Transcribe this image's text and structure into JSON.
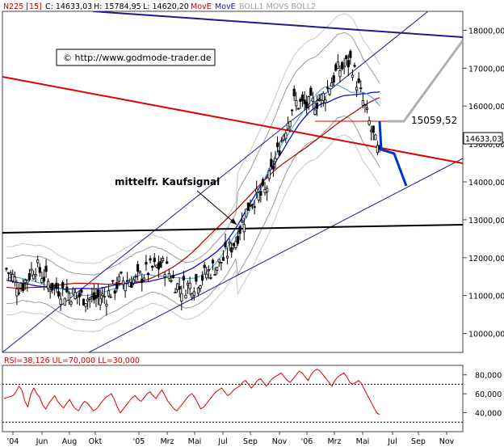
{
  "header": {
    "symbol": "N225 [15]",
    "close": "C: 14633,03",
    "high": "H: 15784,95",
    "low": "L: 14620,20",
    "ind1": "MovE",
    "ind2": "MovE",
    "ind3": "BOLL1 MOVS BOLL2"
  },
  "watermark": "© http://www.godmode-trader.de",
  "annotation": "mittelfr. Kaufsignal",
  "price_label": "15059,52",
  "last_price": "14633,03",
  "colors": {
    "bull": "#000000",
    "bear": "#000000",
    "red": "#e00000",
    "blue": "#0000cc",
    "navy": "#1c1c8a",
    "cyan": "#3aa0c8",
    "gray": "#9a9a9a",
    "rsi": "#dd0000"
  },
  "chart_data": [
    {
      "type": "candlestick",
      "title": "",
      "ylim": [
        9500,
        18500
      ],
      "y_ticks": [
        "10000,00",
        "11000,00",
        "12000,00",
        "13000,00",
        "14000,00",
        "15000,00",
        "16000,00",
        "17000,00",
        "18000,00"
      ],
      "y_tick_values": [
        10000,
        11000,
        12000,
        13000,
        14000,
        15000,
        16000,
        17000,
        18000
      ],
      "x_ticks": [
        "'04",
        "Jun",
        "Aug",
        "Okt",
        "'05",
        "Mrz",
        "Mai",
        "Jul",
        "Sep",
        "Nov",
        "'06",
        "Mrz",
        "Mai",
        "Jul",
        "Sep",
        "Nov"
      ],
      "series_close_approx": [
        {
          "date": "2004-04",
          "close": 11700
        },
        {
          "date": "2004-05",
          "close": 11200
        },
        {
          "date": "2004-06",
          "close": 11800
        },
        {
          "date": "2004-07",
          "close": 11300
        },
        {
          "date": "2004-08",
          "close": 11100
        },
        {
          "date": "2004-09",
          "close": 11000
        },
        {
          "date": "2004-10",
          "close": 10900
        },
        {
          "date": "2004-11",
          "close": 11000
        },
        {
          "date": "2004-12",
          "close": 11400
        },
        {
          "date": "2005-01",
          "close": 11400
        },
        {
          "date": "2005-02",
          "close": 11700
        },
        {
          "date": "2005-03",
          "close": 11800
        },
        {
          "date": "2005-04",
          "close": 11200
        },
        {
          "date": "2005-05",
          "close": 11300
        },
        {
          "date": "2005-06",
          "close": 11600
        },
        {
          "date": "2005-07",
          "close": 11900
        },
        {
          "date": "2005-08",
          "close": 12500
        },
        {
          "date": "2005-09",
          "close": 13500
        },
        {
          "date": "2005-10",
          "close": 13700
        },
        {
          "date": "2005-11",
          "close": 14900
        },
        {
          "date": "2005-12",
          "close": 16100
        },
        {
          "date": "2006-01",
          "close": 16000
        },
        {
          "date": "2006-02",
          "close": 16200
        },
        {
          "date": "2006-03",
          "close": 16900
        },
        {
          "date": "2006-04",
          "close": 17200
        },
        {
          "date": "2006-05",
          "close": 15900
        },
        {
          "date": "2006-06",
          "close": 14633
        }
      ],
      "hline_label": "15059,52",
      "hline_value": 15060,
      "projection_line": [
        {
          "value": 14350
        },
        {
          "value": 13300
        }
      ]
    },
    {
      "type": "line",
      "title": "RSI=38,126 UL=70,000 LL=30,000",
      "ylim": [
        20,
        90
      ],
      "y_ticks": [
        "40,000",
        "60,000",
        "80,000"
      ],
      "y_tick_values": [
        40,
        60,
        80
      ],
      "upper_line": 70,
      "lower_line": 30,
      "rsi_values": [
        55,
        56,
        57,
        58,
        62,
        68,
        64,
        52,
        46,
        60,
        66,
        60,
        56,
        48,
        44,
        50,
        54,
        58,
        52,
        48,
        45,
        50,
        54,
        48,
        44,
        42,
        48,
        52,
        50,
        46,
        42,
        44,
        48,
        52,
        56,
        58,
        60,
        54,
        46,
        40,
        44,
        48,
        52,
        56,
        58,
        54,
        52,
        56,
        60,
        62,
        58,
        55,
        60,
        64,
        58,
        52,
        48,
        44,
        42,
        46,
        50,
        54,
        58,
        60,
        56,
        50,
        44,
        46,
        50,
        54,
        58,
        62,
        64,
        66,
        62,
        58,
        60,
        64,
        66,
        68,
        72,
        74,
        70,
        66,
        70,
        74,
        76,
        72,
        68,
        72,
        76,
        78,
        80,
        82,
        78,
        74,
        72,
        76,
        80,
        84,
        82,
        78,
        74,
        80,
        84,
        86,
        84,
        80,
        76,
        72,
        68,
        74,
        78,
        80,
        82,
        78,
        72,
        70,
        72,
        74,
        70,
        64,
        58,
        52,
        46,
        40,
        38
      ]
    }
  ]
}
